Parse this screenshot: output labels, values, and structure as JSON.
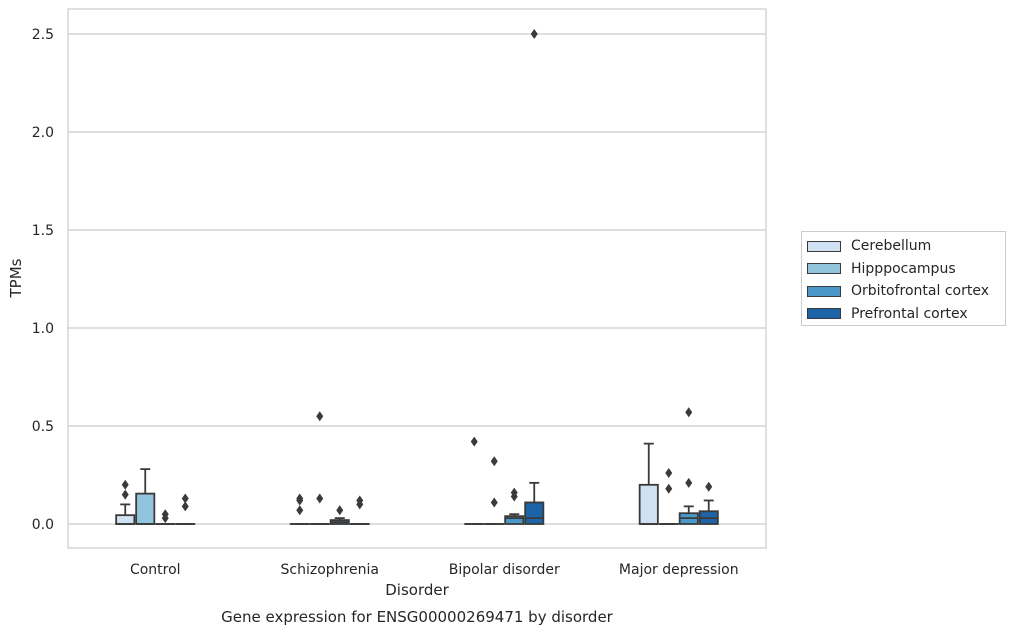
{
  "chart_data": {
    "type": "boxplot",
    "title": "Gene expression for ENSG00000269471 by disorder",
    "xlabel": "Disorder",
    "ylabel": "TPMs",
    "ylim": [
      -0.12,
      2.63
    ],
    "yticks": [
      "0.0",
      "0.5",
      "1.0",
      "1.5",
      "2.0",
      "2.5"
    ],
    "ytick_values": [
      0,
      0.5,
      1.0,
      1.5,
      2.0,
      2.5
    ],
    "grid": "horizontal",
    "legend_position": "right",
    "categories": [
      "Control",
      "Schizophrenia",
      "Bipolar disorder",
      "Major depression"
    ],
    "series": [
      {
        "name": "Cerebellum",
        "color": "#cfe1f2",
        "boxes": [
          {
            "q1": 0,
            "median": 0,
            "q3": 0.045,
            "whisker_low": 0,
            "whisker_high": 0.1,
            "outliers": [
              0.15,
              0.2
            ]
          },
          {
            "q1": 0,
            "median": 0,
            "q3": 0,
            "whisker_low": 0,
            "whisker_high": 0,
            "outliers": [
              0.07,
              0.12,
              0.13
            ]
          },
          {
            "q1": 0,
            "median": 0,
            "q3": 0,
            "whisker_low": 0,
            "whisker_high": 0,
            "outliers": [
              0.42
            ]
          },
          {
            "q1": 0,
            "median": 0,
            "q3": 0.2,
            "whisker_low": 0,
            "whisker_high": 0.41,
            "outliers": []
          }
        ]
      },
      {
        "name": "Hipppocampus",
        "color": "#93c4de",
        "boxes": [
          {
            "q1": 0,
            "median": 0,
            "q3": 0.155,
            "whisker_low": 0,
            "whisker_high": 0.28,
            "outliers": []
          },
          {
            "q1": 0,
            "median": 0,
            "q3": 0,
            "whisker_low": 0,
            "whisker_high": 0,
            "outliers": [
              0.13,
              0.55
            ]
          },
          {
            "q1": 0,
            "median": 0,
            "q3": 0,
            "whisker_low": 0,
            "whisker_high": 0,
            "outliers": [
              0.11,
              0.32
            ]
          },
          {
            "q1": 0,
            "median": 0,
            "q3": 0,
            "whisker_low": 0,
            "whisker_high": 0,
            "outliers": [
              0.18,
              0.26
            ]
          }
        ]
      },
      {
        "name": "Orbitofrontal cortex",
        "color": "#4a98c9",
        "boxes": [
          {
            "q1": 0,
            "median": 0,
            "q3": 0,
            "whisker_low": 0,
            "whisker_high": 0,
            "outliers": [
              0.03,
              0.05
            ]
          },
          {
            "q1": 0,
            "median": 0.01,
            "q3": 0.02,
            "whisker_low": 0,
            "whisker_high": 0.03,
            "outliers": [
              0.07
            ]
          },
          {
            "q1": 0,
            "median": 0.03,
            "q3": 0.04,
            "whisker_low": 0,
            "whisker_high": 0.05,
            "outliers": [
              0.14,
              0.16
            ]
          },
          {
            "q1": 0,
            "median": 0.03,
            "q3": 0.055,
            "whisker_low": 0,
            "whisker_high": 0.09,
            "outliers": [
              0.21,
              0.57
            ]
          }
        ]
      },
      {
        "name": "Prefrontal cortex",
        "color": "#1d63a8",
        "boxes": [
          {
            "q1": 0,
            "median": 0,
            "q3": 0,
            "whisker_low": 0,
            "whisker_high": 0,
            "outliers": [
              0.09,
              0.13
            ]
          },
          {
            "q1": 0,
            "median": 0,
            "q3": 0,
            "whisker_low": 0,
            "whisker_high": 0,
            "outliers": [
              0.1,
              0.12
            ]
          },
          {
            "q1": 0,
            "median": 0.03,
            "q3": 0.11,
            "whisker_low": 0,
            "whisker_high": 0.21,
            "outliers": [
              2.5
            ]
          },
          {
            "q1": 0,
            "median": 0.03,
            "q3": 0.065,
            "whisker_low": 0,
            "whisker_high": 0.12,
            "outliers": [
              0.19
            ]
          }
        ]
      }
    ]
  }
}
